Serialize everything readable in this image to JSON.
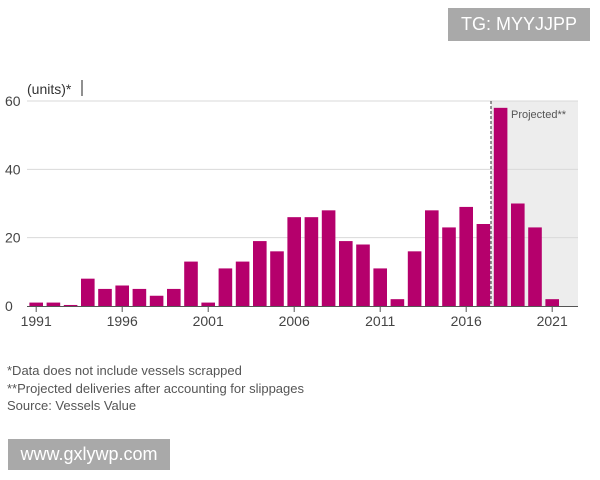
{
  "chart_data": {
    "type": "bar",
    "unit_label": "(units)*",
    "categories": [
      1991,
      1992,
      1993,
      1994,
      1995,
      1996,
      1997,
      1998,
      1999,
      2000,
      2001,
      2002,
      2003,
      2004,
      2005,
      2006,
      2007,
      2008,
      2009,
      2010,
      2011,
      2012,
      2013,
      2014,
      2015,
      2016,
      2017,
      2018,
      2019,
      2020,
      2021
    ],
    "values": [
      1,
      1,
      0.3,
      8,
      5,
      6,
      5,
      3,
      5,
      13,
      1,
      11,
      13,
      19,
      16,
      26,
      26,
      28,
      19,
      18,
      11,
      2,
      16,
      28,
      23,
      29,
      24,
      58,
      30,
      23,
      2
    ],
    "ylim": [
      0,
      60
    ],
    "yticks": [
      0,
      20,
      40,
      60
    ],
    "xtick_labels": [
      "1991",
      "1996",
      "2001",
      "2006",
      "2011",
      "2016",
      "2021"
    ],
    "projected_from": 2018,
    "projected_label": "Projected**",
    "bar_color": "#b5006c",
    "grid": true
  },
  "footnotes": {
    "note1": "*Data does not include vessels scrapped",
    "note2": "**Projected deliveries after accounting for slippages",
    "source": "Source: Vessels Value"
  },
  "watermarks": {
    "top": "TG: MYYJJPP",
    "bottom": "www.gxlywp.com"
  }
}
